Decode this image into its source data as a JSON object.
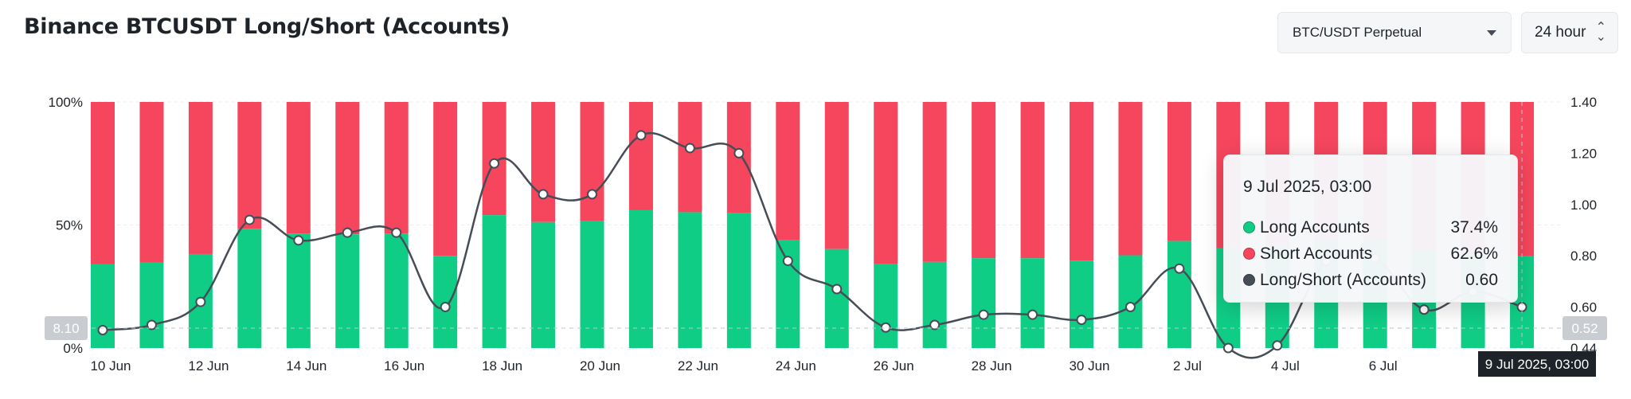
{
  "header": {
    "title": "Binance BTCUSDT Long/Short (Accounts)",
    "market_select": "BTC/USDT Perpetual",
    "period_select": "24 hour"
  },
  "colors": {
    "long": "#10cd86",
    "short": "#f6465d",
    "ratio_line": "#474d57",
    "axis_text": "#1e2329"
  },
  "tooltip": {
    "date": "9 Jul 2025, 03:00",
    "rows": [
      {
        "label": "Long Accounts",
        "value": "37.4%",
        "color": "#10cd86"
      },
      {
        "label": "Short Accounts",
        "value": "62.6%",
        "color": "#f6465d"
      },
      {
        "label": "Long/Short (Accounts)",
        "value": "0.60",
        "color": "#474d57"
      }
    ]
  },
  "crosshair": {
    "left_label": "8.10",
    "right_label": "0.52",
    "x_label": "9 Jul 2025, 03:00"
  },
  "chart_data": {
    "type": "bar",
    "stacked": true,
    "x": [
      "10 Jun",
      "11 Jun",
      "12 Jun",
      "13 Jun",
      "14 Jun",
      "15 Jun",
      "16 Jun",
      "17 Jun",
      "18 Jun",
      "19 Jun",
      "20 Jun",
      "21 Jun",
      "22 Jun",
      "23 Jun",
      "24 Jun",
      "25 Jun",
      "26 Jun",
      "27 Jun",
      "28 Jun",
      "29 Jun",
      "30 Jun",
      "1 Jul",
      "2 Jul",
      "3 Jul",
      "4 Jul",
      "5 Jul",
      "6 Jul",
      "7 Jul",
      "8 Jul",
      "9 Jul"
    ],
    "x_tick_labels": [
      "10 Jun",
      "12 Jun",
      "14 Jun",
      "16 Jun",
      "18 Jun",
      "20 Jun",
      "22 Jun",
      "24 Jun",
      "26 Jun",
      "28 Jun",
      "30 Jun",
      "2 Jul",
      "4 Jul",
      "6 Jul"
    ],
    "series": [
      {
        "name": "Long Accounts",
        "type": "bar",
        "axis": "left",
        "values": [
          34.0,
          34.8,
          38.2,
          48.5,
          46.5,
          46.2,
          46.5,
          37.5,
          54.0,
          51.2,
          51.5,
          56.0,
          55.2,
          55.0,
          43.8,
          40.2,
          34.3,
          35.0,
          36.5,
          36.5,
          35.5,
          37.7,
          43.5,
          40.6,
          41.0,
          44.0,
          44.0,
          39.5,
          38.0,
          37.4
        ]
      },
      {
        "name": "Short Accounts",
        "type": "bar",
        "axis": "left",
        "values": [
          66.0,
          65.2,
          61.8,
          51.5,
          53.5,
          53.8,
          53.5,
          62.5,
          46.0,
          48.8,
          48.5,
          44.0,
          44.8,
          45.0,
          56.2,
          59.8,
          65.7,
          65.0,
          63.5,
          63.5,
          64.5,
          62.3,
          56.5,
          59.4,
          59.0,
          56.0,
          56.0,
          60.5,
          62.0,
          62.6
        ]
      },
      {
        "name": "Long/Short (Accounts)",
        "type": "line",
        "axis": "right",
        "values": [
          0.51,
          0.53,
          0.62,
          0.94,
          0.86,
          0.89,
          0.89,
          0.6,
          1.16,
          1.04,
          1.04,
          1.27,
          1.22,
          1.2,
          0.78,
          0.67,
          0.52,
          0.53,
          0.57,
          0.57,
          0.55,
          0.6,
          0.75,
          0.44,
          0.45,
          0.78,
          0.79,
          0.59,
          0.66,
          0.6
        ]
      }
    ],
    "left_axis": {
      "ticks": [
        "100%",
        "50%",
        "0%"
      ],
      "range": [
        0,
        100
      ]
    },
    "right_axis": {
      "ticks": [
        "1.40",
        "1.20",
        "1.00",
        "0.80",
        "0.60",
        "0.44"
      ],
      "range": [
        0.44,
        1.4
      ]
    },
    "grid": true
  }
}
